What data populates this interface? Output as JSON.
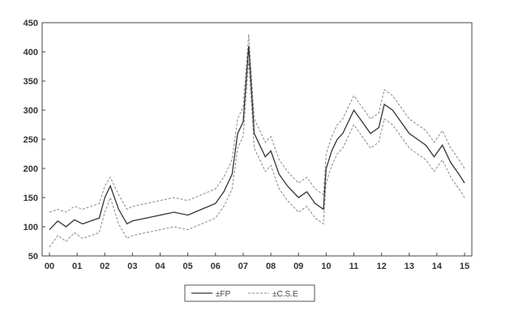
{
  "chart_data": {
    "type": "line",
    "title": "",
    "xlabel": "",
    "ylabel": "",
    "x_ticks": [
      "00",
      "01",
      "02",
      "03",
      "04",
      "05",
      "06",
      "07",
      "08",
      "09",
      "10",
      "11",
      "12",
      "13",
      "14",
      "15"
    ],
    "y_ticks": [
      50,
      100,
      150,
      200,
      250,
      300,
      350,
      400,
      450
    ],
    "ylim": [
      50,
      450
    ],
    "xlim": [
      0,
      15
    ],
    "grid": false,
    "legend_position": "bottom-center",
    "series": [
      {
        "name": "±FP",
        "style": "solid",
        "color": "#333333",
        "x": [
          0,
          0.3,
          0.6,
          0.9,
          1.2,
          1.5,
          1.8,
          2.0,
          2.2,
          2.5,
          2.8,
          3.0,
          3.5,
          4.0,
          4.5,
          5.0,
          5.5,
          6.0,
          6.3,
          6.6,
          6.8,
          7.0,
          7.2,
          7.4,
          7.6,
          7.8,
          8.0,
          8.3,
          8.6,
          9.0,
          9.3,
          9.6,
          9.9,
          10.0,
          10.2,
          10.4,
          10.6,
          10.8,
          11.0,
          11.3,
          11.6,
          11.9,
          12.1,
          12.4,
          12.7,
          13.0,
          13.3,
          13.6,
          13.9,
          14.2,
          14.5,
          14.8,
          15.0
        ],
        "values": [
          95,
          110,
          100,
          112,
          105,
          110,
          115,
          150,
          170,
          130,
          105,
          110,
          115,
          120,
          125,
          120,
          130,
          140,
          160,
          190,
          260,
          280,
          410,
          260,
          240,
          220,
          230,
          190,
          170,
          150,
          160,
          140,
          130,
          200,
          230,
          250,
          260,
          280,
          300,
          280,
          260,
          270,
          310,
          300,
          280,
          260,
          250,
          240,
          220,
          240,
          210,
          190,
          175
        ]
      },
      {
        "name": "±C.S.E",
        "style": "dashed",
        "color": "#888888",
        "x": [
          0,
          0.3,
          0.6,
          0.9,
          1.2,
          1.5,
          1.8,
          2.0,
          2.2,
          2.5,
          2.8,
          3.0,
          3.5,
          4.0,
          4.5,
          5.0,
          5.5,
          6.0,
          6.3,
          6.6,
          6.8,
          7.0,
          7.2,
          7.4,
          7.6,
          7.8,
          8.0,
          8.3,
          8.6,
          9.0,
          9.3,
          9.6,
          9.9,
          10.0,
          10.2,
          10.4,
          10.6,
          10.8,
          11.0,
          11.3,
          11.6,
          11.9,
          12.1,
          12.4,
          12.7,
          13.0,
          13.3,
          13.6,
          13.9,
          14.2,
          14.5,
          14.8,
          15.0
        ],
        "upper": [
          125,
          130,
          125,
          135,
          130,
          135,
          140,
          170,
          185,
          155,
          130,
          135,
          140,
          145,
          150,
          145,
          155,
          165,
          185,
          215,
          285,
          305,
          430,
          285,
          265,
          245,
          255,
          215,
          195,
          175,
          185,
          165,
          155,
          225,
          255,
          275,
          285,
          305,
          325,
          305,
          285,
          295,
          335,
          325,
          305,
          285,
          275,
          265,
          245,
          265,
          235,
          215,
          200
        ],
        "lower": [
          65,
          85,
          75,
          90,
          80,
          85,
          90,
          125,
          150,
          105,
          80,
          85,
          90,
          95,
          100,
          95,
          105,
          115,
          135,
          165,
          235,
          255,
          385,
          235,
          215,
          195,
          205,
          165,
          145,
          125,
          135,
          115,
          105,
          175,
          205,
          225,
          235,
          255,
          275,
          255,
          235,
          245,
          285,
          275,
          255,
          235,
          225,
          215,
          195,
          215,
          185,
          165,
          150
        ]
      }
    ]
  }
}
